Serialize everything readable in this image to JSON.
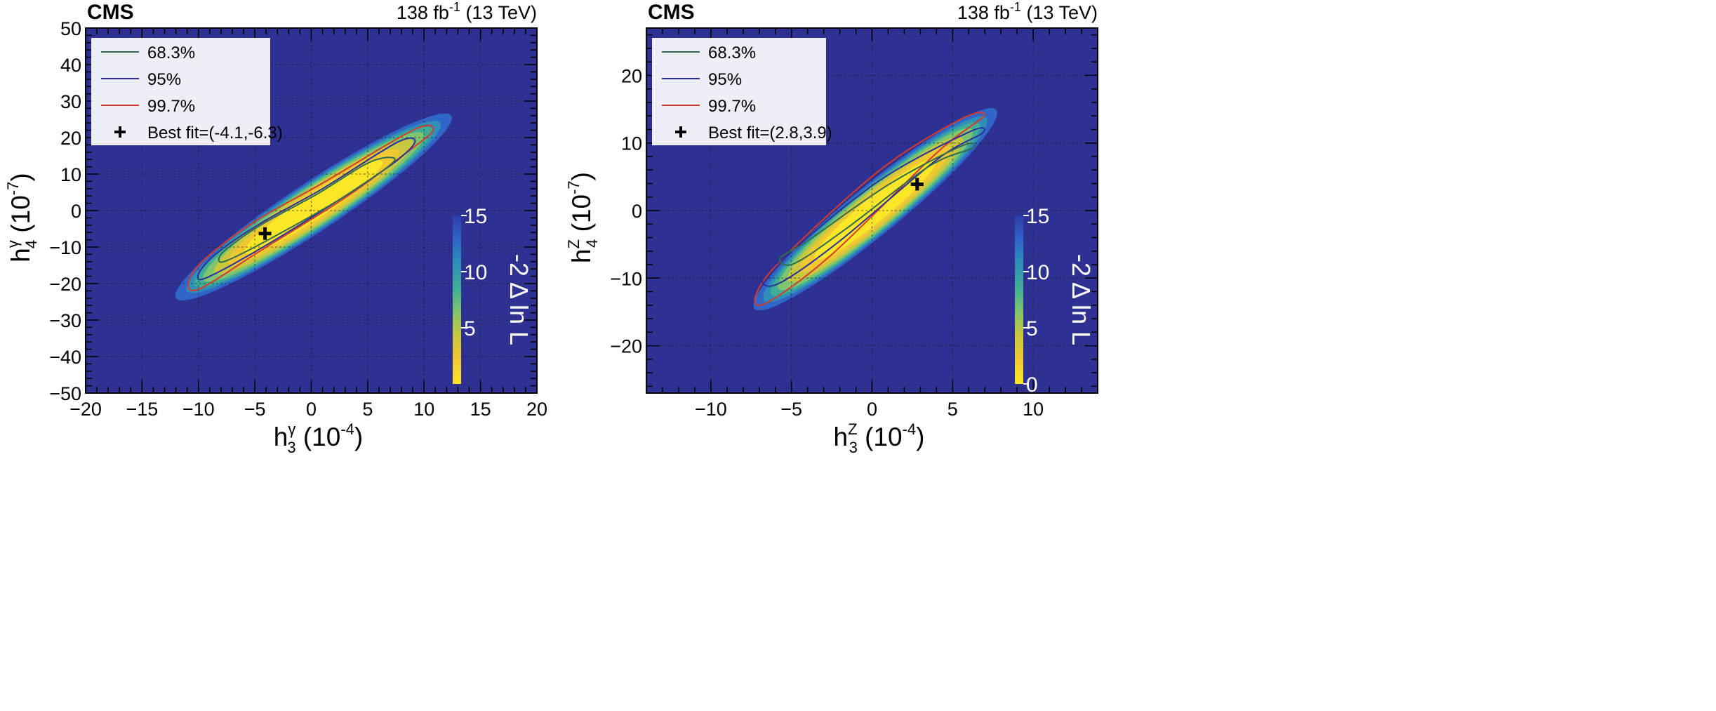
{
  "colors": {
    "background": "#2e3192",
    "c68": "#2f6b4f",
    "c95": "#2b2f9a",
    "c997": "#d63b2a",
    "colormap": [
      "#fbe728",
      "#f0c832",
      "#c9c83e",
      "#7fc46e",
      "#3fae97",
      "#2f8fb8",
      "#2f66c8",
      "#2e3ba8"
    ]
  },
  "chart_data": [
    {
      "type": "heatmap",
      "experiment": "CMS",
      "lumi": "138 fb",
      "lumi_sup": "-1",
      "energy": " (13 TeV)",
      "xlabel": {
        "base": "h",
        "sub": "3",
        "sup": "γ",
        "unit": " (10",
        "exp": "-4",
        "close": ")"
      },
      "ylabel": {
        "base": "h",
        "sub": "4",
        "sup": "γ",
        "unit": " (10",
        "exp": "-7",
        "close": ")"
      },
      "xlim": [
        -20,
        20
      ],
      "ylim": [
        -50,
        50
      ],
      "xticks": [
        -20,
        -15,
        -10,
        -5,
        0,
        5,
        10,
        15,
        20
      ],
      "xtick_labels": [
        "−20",
        "−15",
        "−10",
        "−5",
        "0",
        "5",
        "10",
        "15",
        "20"
      ],
      "yticks": [
        -50,
        -40,
        -30,
        -20,
        -10,
        0,
        10,
        20,
        30,
        40,
        50
      ],
      "ytick_labels": [
        "−50",
        "−40",
        "−30",
        "−20",
        "−10",
        "0",
        "10",
        "20",
        "30",
        "40",
        "50"
      ],
      "best_fit": [
        -4.1,
        -6.3
      ],
      "legend": [
        {
          "label": "68.3%",
          "style": "c68"
        },
        {
          "label": "95%",
          "style": "c95"
        },
        {
          "label": "99.7%",
          "style": "c997"
        },
        {
          "label": "Best fit=(-4.1,-6.3)",
          "style": "marker"
        }
      ],
      "colorbar": {
        "label": "-2 Δ ln L",
        "range": [
          0,
          15
        ],
        "ticks": [
          "5",
          "10",
          "15"
        ]
      },
      "contours": [
        {
          "level": "68.3%",
          "style": "c68",
          "points": [
            [
              -7.4,
              -13.6
            ],
            [
              -3.5,
              -7.5
            ],
            [
              2.5,
              3.0
            ],
            [
              6.8,
              12.0
            ],
            [
              7.2,
              14.5
            ],
            [
              5.0,
              13.0
            ],
            [
              0.5,
              4.5
            ],
            [
              -4.5,
              -4.0
            ],
            [
              -7.5,
              -10.5
            ],
            [
              -8.2,
              -13.5
            ]
          ]
        },
        {
          "level": "95%",
          "style": "c95",
          "points": [
            [
              -9.2,
              -18.3
            ],
            [
              -4.0,
              -9.5
            ],
            [
              2.5,
              3.0
            ],
            [
              7.5,
              13.5
            ],
            [
              9.2,
              19.0
            ],
            [
              7.5,
              18.5
            ],
            [
              1.0,
              6.0
            ],
            [
              -4.5,
              -3.5
            ],
            [
              -8.5,
              -12.0
            ],
            [
              -10.0,
              -17.5
            ]
          ]
        },
        {
          "level": "99.7%",
          "style": "c997",
          "points": [
            [
              -9.8,
              -21.3
            ],
            [
              -4.5,
              -11.0
            ],
            [
              3.0,
              3.5
            ],
            [
              8.5,
              16.0
            ],
            [
              10.8,
              22.0
            ],
            [
              9.0,
              22.0
            ],
            [
              1.0,
              7.5
            ],
            [
              -5.0,
              -3.0
            ],
            [
              -9.5,
              -13.5
            ],
            [
              -10.9,
              -20.0
            ]
          ]
        }
      ],
      "fill_ellipse": {
        "center": [
          0.2,
          1.0
        ],
        "slope": 2.05,
        "rmajor": 12.2,
        "rminor": 2.0
      }
    },
    {
      "type": "heatmap",
      "experiment": "CMS",
      "lumi": "138 fb",
      "lumi_sup": "-1",
      "energy": " (13 TeV)",
      "xlabel": {
        "base": "h",
        "sub": "3",
        "sup": "Z",
        "unit": " (10",
        "exp": "-4",
        "close": ")"
      },
      "ylabel": {
        "base": "h",
        "sub": "4",
        "sup": "Z",
        "unit": " (10",
        "exp": "-7",
        "close": ")"
      },
      "xlim": [
        -14,
        14
      ],
      "ylim": [
        -27,
        27
      ],
      "xticks": [
        -10,
        -5,
        0,
        5,
        10
      ],
      "xtick_labels": [
        "−10",
        "−5",
        "0",
        "5",
        "10"
      ],
      "yticks": [
        -20,
        -10,
        0,
        10,
        20
      ],
      "ytick_labels": [
        "−20",
        "−10",
        "0",
        "10",
        "20"
      ],
      "best_fit": [
        2.8,
        3.9
      ],
      "legend": [
        {
          "label": "68.3%",
          "style": "c68"
        },
        {
          "label": "95%",
          "style": "c95"
        },
        {
          "label": "99.7%",
          "style": "c997"
        },
        {
          "label": "Best fit=(2.8,3.9)",
          "style": "marker"
        }
      ],
      "colorbar": {
        "label": "-2 Δ ln L",
        "range": [
          0,
          15
        ],
        "ticks": [
          "0",
          "5",
          "10",
          "15"
        ]
      },
      "contours": [
        {
          "level": "68.3%",
          "style": "c68",
          "points": [
            [
              -4.8,
              -7.8
            ],
            [
              -1.5,
              -2.5
            ],
            [
              3.5,
              6.5
            ],
            [
              6.2,
              9.2
            ],
            [
              5.5,
              9.5
            ],
            [
              1.0,
              3.8
            ],
            [
              -4.0,
              -4.5
            ],
            [
              -5.7,
              -7.0
            ]
          ]
        },
        {
          "level": "95%",
          "style": "c95",
          "points": [
            [
              -5.8,
              -10.8
            ],
            [
              -2.0,
              -4.5
            ],
            [
              4.0,
              7.5
            ],
            [
              6.8,
              11.4
            ],
            [
              6.0,
              11.6
            ],
            [
              0.5,
              4.5
            ],
            [
              -5.0,
              -6.0
            ],
            [
              -6.8,
              -10.0
            ]
          ]
        },
        {
          "level": "99.7%",
          "style": "c997",
          "points": [
            [
              -6.5,
              -13.6
            ],
            [
              -2.5,
              -6.5
            ],
            [
              4.0,
              8.5
            ],
            [
              6.9,
              13.9
            ],
            [
              5.5,
              13.5
            ],
            [
              0.5,
              6.0
            ],
            [
              -5.5,
              -7.0
            ],
            [
              -7.2,
              -12.5
            ]
          ]
        }
      ],
      "fill_ellipse": {
        "center": [
          0.2,
          0.2
        ],
        "slope": 1.96,
        "rmajor": 7.5,
        "rminor": 1.3
      }
    }
  ]
}
